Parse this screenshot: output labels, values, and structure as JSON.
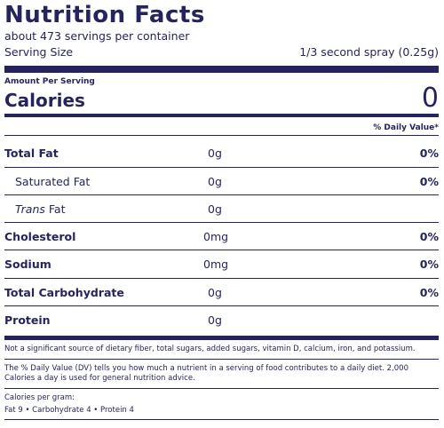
{
  "label": {
    "title": "Nutrition Facts",
    "servings_per_container": "about 473 servings per container",
    "serving_size_label": "Serving Size",
    "serving_size_value": "1/3 second spray (0.25g)",
    "amount_per_serving": "Amount Per Serving",
    "calories_label": "Calories",
    "calories_value": "0",
    "daily_value_header": "% Daily Value*"
  },
  "nutrients": [
    {
      "name": "Total Fat",
      "amount": "0g",
      "dv": "0%"
    },
    {
      "name": "Saturated Fat",
      "amount": "0g",
      "dv": "0%"
    },
    {
      "name_italic": "Trans",
      "name_rest": " Fat",
      "amount": "0g"
    },
    {
      "name": "Cholesterol",
      "amount": "0mg",
      "dv": "0%"
    },
    {
      "name": "Sodium",
      "amount": "0mg",
      "dv": "0%"
    },
    {
      "name": "Total Carbohydrate",
      "amount": "0g",
      "dv": "0%"
    },
    {
      "name": "Protein",
      "amount": "0g"
    }
  ],
  "footnotes": {
    "not_significant": "Not a significant source of dietary fiber, total sugars, added sugars, vitamin D, calcium, iron, and potassium.",
    "daily_value_note": "The % Daily Value (DV) tells you how much a nutrient in a serving of food contributes to a daily diet. 2,000 Calories a day is used for general nutrition advice.",
    "calories_per_gram_label": "Calories per gram:",
    "calories_per_gram_values": "Fat 9 • Carbohydrate 4 • Protein 4"
  },
  "colors": {
    "ink": "#25245e",
    "background": "#ffffff"
  }
}
